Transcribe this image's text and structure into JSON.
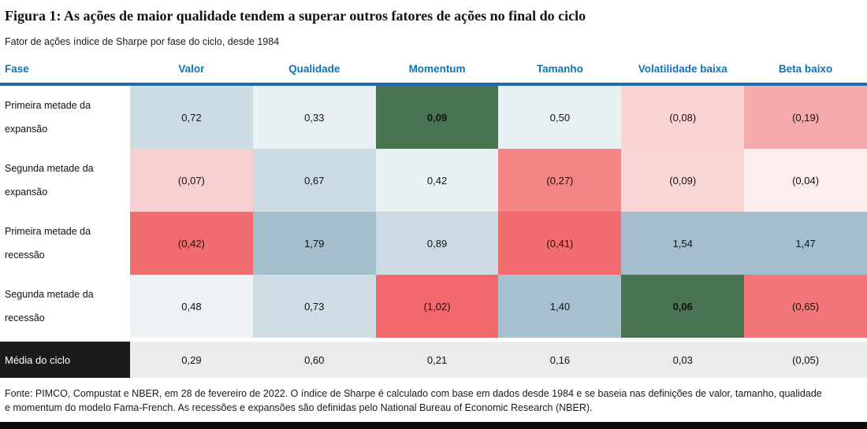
{
  "header": {
    "title": "Figura 1: As ações de maior qualidade tendem a superar outros fatores de ações no final do ciclo",
    "subtitle": "Fator de ações índice de Sharpe por fase do ciclo, desde 1984"
  },
  "colors": {
    "header_blue": "#0d74ba",
    "rule_blue": "#1f6aab",
    "positive_strong_blue": "#a5becd",
    "negative_strong_red": "#f2696c",
    "highlight_green": "#4a7451",
    "average_row_gray": "#ebebeb",
    "average_label_black": "#1b1b1b"
  },
  "table": {
    "columns": [
      "Fase",
      "Valor",
      "Qualidade",
      "Momentum",
      "Tamanho",
      "Volatilidade baixa",
      "Beta baixo"
    ],
    "rows": [
      {
        "label": "Primeira metade da expansão",
        "cells": [
          {
            "text": "0,72",
            "bg": "#ccdce4",
            "bold": false
          },
          {
            "text": "0,33",
            "bg": "#e9f0f4",
            "bold": false
          },
          {
            "text": "0,09",
            "bg": "#4a7451",
            "bold": true
          },
          {
            "text": "0,50",
            "bg": "#e9f0f4",
            "bold": false
          },
          {
            "text": "(0,08)",
            "bg": "#f9d4d4",
            "bold": false
          },
          {
            "text": "(0,19)",
            "bg": "#f5abad",
            "bold": false
          }
        ]
      },
      {
        "label": "Segunda metade da expansão",
        "cells": [
          {
            "text": "(0,07)",
            "bg": "#f8cfd0",
            "bold": false
          },
          {
            "text": "0,67",
            "bg": "#ccdce4",
            "bold": false
          },
          {
            "text": "0,42",
            "bg": "#eaf1f5",
            "bold": false
          },
          {
            "text": "(0,27)",
            "bg": "#f48688",
            "bold": false
          },
          {
            "text": "(0,09)",
            "bg": "#f9d6d6",
            "bold": false
          },
          {
            "text": "(0,04)",
            "bg": "#fdeeee",
            "bold": false
          }
        ]
      },
      {
        "label": "Primeira metade da recessão",
        "cells": [
          {
            "text": "(0,42)",
            "bg": "#f26d6f",
            "bold": false
          },
          {
            "text": "1,79",
            "bg": "#a5bfcd",
            "bold": false
          },
          {
            "text": "0,89",
            "bg": "#ccdbe3",
            "bold": false
          },
          {
            "text": "(0,41)",
            "bg": "#f26d6f",
            "bold": false
          },
          {
            "text": "1,54",
            "bg": "#a5becd",
            "bold": false
          },
          {
            "text": "1,47",
            "bg": "#a5becd",
            "bold": false
          }
        ]
      },
      {
        "label": "Segunda metade da recessão",
        "cells": [
          {
            "text": "0,48",
            "bg": "#edf2f5",
            "bold": false
          },
          {
            "text": "0,73",
            "bg": "#cfdee5",
            "bold": false
          },
          {
            "text": "(1,02)",
            "bg": "#f2696c",
            "bold": false
          },
          {
            "text": "1,40",
            "bg": "#a7c1cf",
            "bold": false
          },
          {
            "text": "0,06",
            "bg": "#4a7451",
            "bold": true
          },
          {
            "text": "(0,65)",
            "bg": "#f3777a",
            "bold": false
          }
        ]
      }
    ],
    "average_row": {
      "label": "Média do ciclo",
      "label_bg": "#1b1b1b",
      "label_color": "#ffffff",
      "cells": [
        {
          "text": "0,29",
          "bg": "#ebebeb"
        },
        {
          "text": "0,60",
          "bg": "#ebebeb"
        },
        {
          "text": "0,21",
          "bg": "#ebebeb"
        },
        {
          "text": "0,16",
          "bg": "#ebebeb"
        },
        {
          "text": "0,03",
          "bg": "#ebebeb"
        },
        {
          "text": "(0,05)",
          "bg": "#ebebeb"
        }
      ]
    }
  },
  "footer": {
    "line1": "Fonte: PIMCO, Compustat e NBER, em 28 de fevereiro de 2022. O índice de Sharpe é calculado com base em dados desde 1984 e se baseia nas definições de valor, tamanho, qualidade",
    "line2": "e momentum do modelo Fama-French. As recessões e expansões são definidas pelo National Bureau of Economic Research (NBER)."
  },
  "chart_data": {
    "type": "heatmap",
    "title": "Figura 1: As ações de maior qualidade tendem a superar outros fatores de ações no final do ciclo",
    "subtitle": "Fator de ações índice de Sharpe por fase do ciclo, desde 1984",
    "columns": [
      "Valor",
      "Qualidade",
      "Momentum",
      "Tamanho",
      "Volatilidade baixa",
      "Beta baixo"
    ],
    "rows": [
      "Primeira metade da expansão",
      "Segunda metade da expansão",
      "Primeira metade da recessão",
      "Segunda metade da recessão",
      "Média do ciclo"
    ],
    "values": [
      [
        0.72,
        0.33,
        0.09,
        0.5,
        -0.08,
        -0.19
      ],
      [
        -0.07,
        0.67,
        0.42,
        -0.27,
        -0.09,
        -0.04
      ],
      [
        -0.42,
        1.79,
        0.89,
        -0.41,
        1.54,
        1.47
      ],
      [
        0.48,
        0.73,
        -1.02,
        1.4,
        0.06,
        -0.65
      ],
      [
        0.29,
        0.6,
        0.21,
        0.16,
        0.03,
        -0.05
      ]
    ],
    "notes": "Negative values shown in parentheses with comma decimal separator; blue shades = positive, red/pink shades = negative, dark green = highlighted cells (0,09 Momentum early expansion; 0,06 Volatilidade baixa late recession)."
  }
}
